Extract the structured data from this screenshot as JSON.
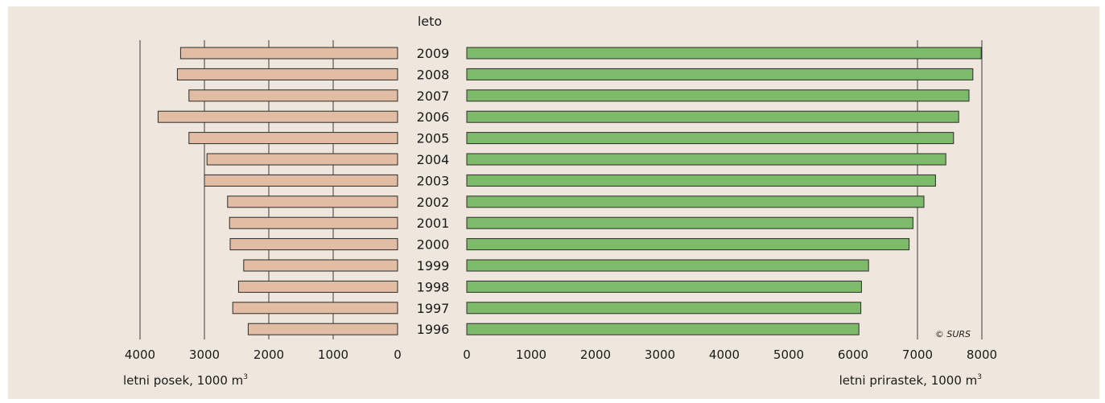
{
  "chart_data": [
    {
      "type": "bar",
      "orientation": "horizontal",
      "direction": "leftward",
      "categories": [
        "2009",
        "2008",
        "2007",
        "2006",
        "2005",
        "2004",
        "2003",
        "2002",
        "2001",
        "2000",
        "1999",
        "1998",
        "1997",
        "1996"
      ],
      "values": [
        3370,
        3420,
        3240,
        3720,
        3240,
        2960,
        3000,
        2640,
        2610,
        2600,
        2390,
        2470,
        2560,
        2320
      ],
      "xlabel": "letni posek, 1000 m",
      "xlabel_sup": "3",
      "xlim": [
        0,
        4000
      ],
      "xticks": [
        4000,
        3000,
        2000,
        1000,
        0
      ],
      "grid": true,
      "color": "#e2bda4"
    },
    {
      "type": "bar",
      "orientation": "horizontal",
      "direction": "rightward",
      "categories": [
        "2009",
        "2008",
        "2007",
        "2006",
        "2005",
        "2004",
        "2003",
        "2002",
        "2001",
        "2000",
        "1999",
        "1998",
        "1997",
        "1996"
      ],
      "values": [
        7990,
        7860,
        7800,
        7640,
        7560,
        7440,
        7280,
        7100,
        6930,
        6870,
        6240,
        6130,
        6120,
        6090
      ],
      "xlabel": "letni prirastek, 1000 m",
      "xlabel_sup": "3",
      "xlim": [
        0,
        8000
      ],
      "xticks": [
        0,
        1000,
        2000,
        3000,
        4000,
        5000,
        6000,
        7000,
        8000
      ],
      "grid": true,
      "color": "#7dbb6b"
    }
  ],
  "category_axis_title": "leto",
  "credit": "© SURS",
  "colors": {
    "background": "#efe7dd",
    "bar_stroke": "#2b2b2b",
    "grid": "#3a3a3a"
  }
}
